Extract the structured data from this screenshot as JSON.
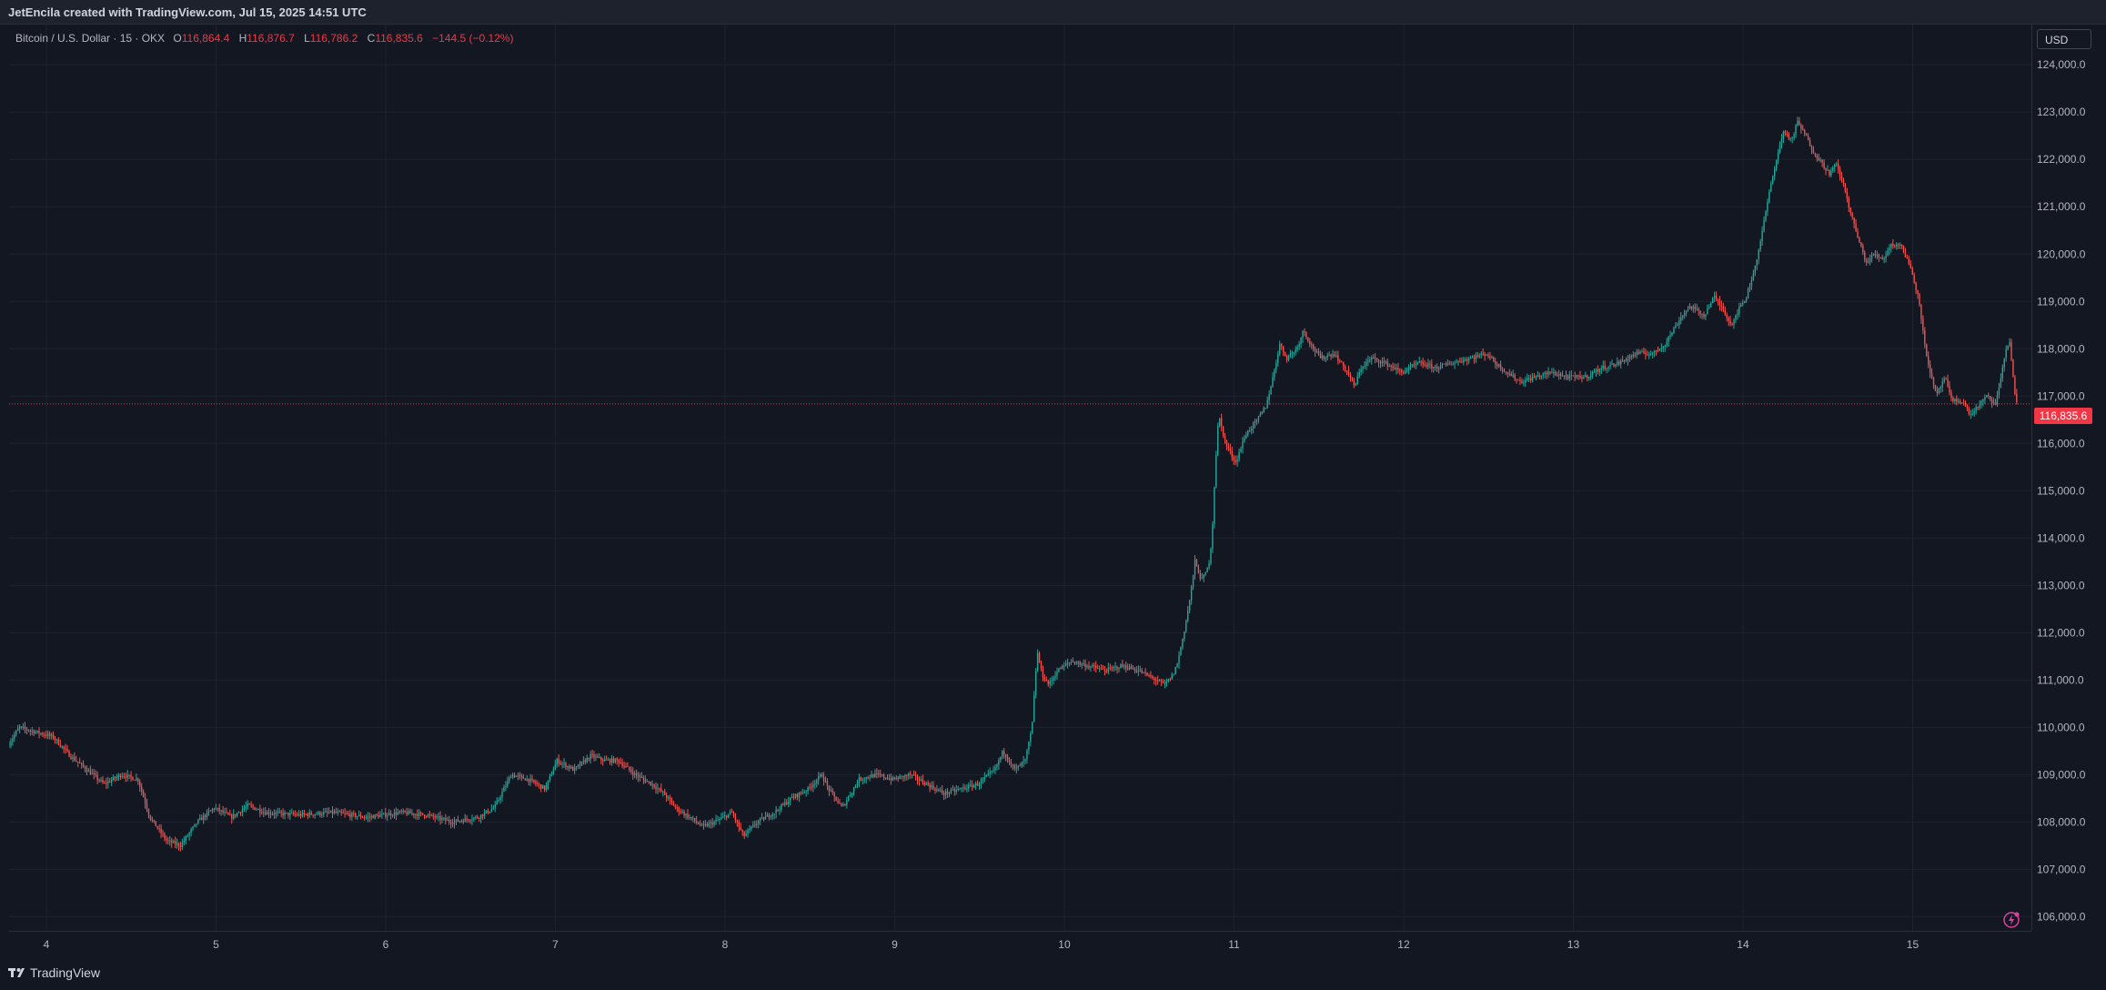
{
  "header": {
    "caption": "JetEncila created with TradingView.com, Jul 15, 2025 14:51 UTC"
  },
  "legend": {
    "symbol": "Bitcoin / U.S. Dollar · 15 · OKX",
    "o_key": "O",
    "o_val": "116,864.4",
    "h_key": "H",
    "h_val": "116,876.7",
    "l_key": "L",
    "l_val": "116,786.2",
    "c_key": "C",
    "c_val": "116,835.6",
    "change": "−144.5 (−0.12%)"
  },
  "price_axis": {
    "currency": "USD",
    "last_price_label": "116,835.6"
  },
  "footer": {
    "brand": "TradingView"
  },
  "icons": [
    "tradingview-logo-icon",
    "flash-icon"
  ],
  "colors": {
    "background": "#131722",
    "up": "#26a69a",
    "down": "#ef5350",
    "last_price": "#f23645",
    "grid": "#1f2330"
  },
  "chart_data": {
    "type": "candlestick",
    "symbol": "Bitcoin / U.S. Dollar",
    "interval": "15",
    "exchange": "OKX",
    "x_ticks": [
      "4",
      "5",
      "6",
      "7",
      "8",
      "9",
      "10",
      "11",
      "12",
      "13",
      "14",
      "15"
    ],
    "x_range": [
      3.78,
      15.7
    ],
    "y_ticks": [
      106000,
      107000,
      108000,
      109000,
      110000,
      111000,
      112000,
      113000,
      114000,
      115000,
      116000,
      117000,
      118000,
      119000,
      120000,
      121000,
      122000,
      123000,
      124000
    ],
    "y_tick_labels": [
      "106,000.0",
      "107,000.0",
      "108,000.0",
      "109,000.0",
      "110,000.0",
      "111,000.0",
      "112,000.0",
      "113,000.0",
      "114,000.0",
      "115,000.0",
      "116,000.0",
      "117,000.0",
      "118,000.0",
      "119,000.0",
      "120,000.0",
      "121,000.0",
      "122,000.0",
      "123,000.0",
      "124,000.0"
    ],
    "y_range": [
      105700,
      124850
    ],
    "last_price": 116835.6,
    "grid": true,
    "close_path": [
      [
        3.78,
        109600
      ],
      [
        3.85,
        110000
      ],
      [
        3.95,
        109900
      ],
      [
        4.05,
        109800
      ],
      [
        4.15,
        109400
      ],
      [
        4.25,
        109100
      ],
      [
        4.35,
        108800
      ],
      [
        4.45,
        109000
      ],
      [
        4.55,
        108900
      ],
      [
        4.62,
        108100
      ],
      [
        4.72,
        107600
      ],
      [
        4.8,
        107500
      ],
      [
        4.9,
        108000
      ],
      [
        5.0,
        108300
      ],
      [
        5.1,
        108100
      ],
      [
        5.2,
        108350
      ],
      [
        5.3,
        108200
      ],
      [
        5.5,
        108150
      ],
      [
        5.7,
        108200
      ],
      [
        5.9,
        108100
      ],
      [
        6.1,
        108200
      ],
      [
        6.25,
        108150
      ],
      [
        6.4,
        108000
      ],
      [
        6.55,
        108100
      ],
      [
        6.65,
        108300
      ],
      [
        6.75,
        109000
      ],
      [
        6.85,
        108900
      ],
      [
        6.95,
        108700
      ],
      [
        7.02,
        109300
      ],
      [
        7.12,
        109100
      ],
      [
        7.22,
        109400
      ],
      [
        7.3,
        109300
      ],
      [
        7.38,
        109300
      ],
      [
        7.48,
        109000
      ],
      [
        7.58,
        108800
      ],
      [
        7.65,
        108600
      ],
      [
        7.72,
        108300
      ],
      [
        7.8,
        108100
      ],
      [
        7.88,
        107900
      ],
      [
        7.95,
        108000
      ],
      [
        8.05,
        108200
      ],
      [
        8.12,
        107700
      ],
      [
        8.2,
        108000
      ],
      [
        8.3,
        108200
      ],
      [
        8.4,
        108500
      ],
      [
        8.5,
        108700
      ],
      [
        8.58,
        109000
      ],
      [
        8.62,
        108700
      ],
      [
        8.7,
        108300
      ],
      [
        8.8,
        108900
      ],
      [
        8.9,
        109000
      ],
      [
        9.0,
        108900
      ],
      [
        9.1,
        109000
      ],
      [
        9.2,
        108800
      ],
      [
        9.3,
        108600
      ],
      [
        9.4,
        108700
      ],
      [
        9.5,
        108800
      ],
      [
        9.6,
        109100
      ],
      [
        9.65,
        109500
      ],
      [
        9.72,
        109100
      ],
      [
        9.78,
        109300
      ],
      [
        9.82,
        110000
      ],
      [
        9.85,
        111600
      ],
      [
        9.88,
        111100
      ],
      [
        9.92,
        110900
      ],
      [
        9.97,
        111200
      ],
      [
        10.05,
        111400
      ],
      [
        10.15,
        111300
      ],
      [
        10.25,
        111200
      ],
      [
        10.35,
        111300
      ],
      [
        10.45,
        111200
      ],
      [
        10.55,
        111000
      ],
      [
        10.6,
        110900
      ],
      [
        10.65,
        111100
      ],
      [
        10.68,
        111400
      ],
      [
        10.72,
        112100
      ],
      [
        10.75,
        112700
      ],
      [
        10.78,
        113500
      ],
      [
        10.82,
        113100
      ],
      [
        10.86,
        113400
      ],
      [
        10.88,
        114000
      ],
      [
        10.9,
        115500
      ],
      [
        10.92,
        116600
      ],
      [
        10.96,
        116000
      ],
      [
        11.02,
        115600
      ],
      [
        11.08,
        116200
      ],
      [
        11.15,
        116500
      ],
      [
        11.2,
        116800
      ],
      [
        11.24,
        117400
      ],
      [
        11.28,
        118100
      ],
      [
        11.32,
        117800
      ],
      [
        11.38,
        118000
      ],
      [
        11.42,
        118400
      ],
      [
        11.46,
        118100
      ],
      [
        11.52,
        117800
      ],
      [
        11.6,
        117900
      ],
      [
        11.68,
        117500
      ],
      [
        11.72,
        117200
      ],
      [
        11.76,
        117600
      ],
      [
        11.82,
        117800
      ],
      [
        11.9,
        117700
      ],
      [
        12.0,
        117500
      ],
      [
        12.1,
        117700
      ],
      [
        12.2,
        117600
      ],
      [
        12.3,
        117700
      ],
      [
        12.4,
        117800
      ],
      [
        12.5,
        117900
      ],
      [
        12.55,
        117700
      ],
      [
        12.62,
        117500
      ],
      [
        12.7,
        117300
      ],
      [
        12.78,
        117400
      ],
      [
        12.88,
        117500
      ],
      [
        12.98,
        117400
      ],
      [
        13.08,
        117400
      ],
      [
        13.18,
        117600
      ],
      [
        13.28,
        117700
      ],
      [
        13.38,
        117900
      ],
      [
        13.48,
        117900
      ],
      [
        13.55,
        118100
      ],
      [
        13.6,
        118400
      ],
      [
        13.65,
        118700
      ],
      [
        13.7,
        118900
      ],
      [
        13.78,
        118700
      ],
      [
        13.84,
        119100
      ],
      [
        13.9,
        118800
      ],
      [
        13.94,
        118500
      ],
      [
        13.98,
        118800
      ],
      [
        14.03,
        119100
      ],
      [
        14.08,
        119700
      ],
      [
        14.12,
        120400
      ],
      [
        14.16,
        121200
      ],
      [
        14.2,
        121900
      ],
      [
        14.25,
        122600
      ],
      [
        14.3,
        122400
      ],
      [
        14.33,
        122800
      ],
      [
        14.38,
        122500
      ],
      [
        14.42,
        122200
      ],
      [
        14.48,
        121900
      ],
      [
        14.52,
        121700
      ],
      [
        14.56,
        121900
      ],
      [
        14.6,
        121500
      ],
      [
        14.65,
        120800
      ],
      [
        14.7,
        120200
      ],
      [
        14.74,
        119800
      ],
      [
        14.78,
        120000
      ],
      [
        14.84,
        119900
      ],
      [
        14.88,
        120200
      ],
      [
        14.94,
        120200
      ],
      [
        15.0,
        119700
      ],
      [
        15.05,
        119000
      ],
      [
        15.08,
        118100
      ],
      [
        15.12,
        117400
      ],
      [
        15.15,
        117000
      ],
      [
        15.2,
        117400
      ],
      [
        15.24,
        116900
      ],
      [
        15.3,
        116900
      ],
      [
        15.35,
        116600
      ],
      [
        15.4,
        116800
      ],
      [
        15.45,
        117000
      ],
      [
        15.5,
        116800
      ],
      [
        15.55,
        117800
      ],
      [
        15.58,
        118200
      ],
      [
        15.62,
        116835.6
      ]
    ]
  }
}
